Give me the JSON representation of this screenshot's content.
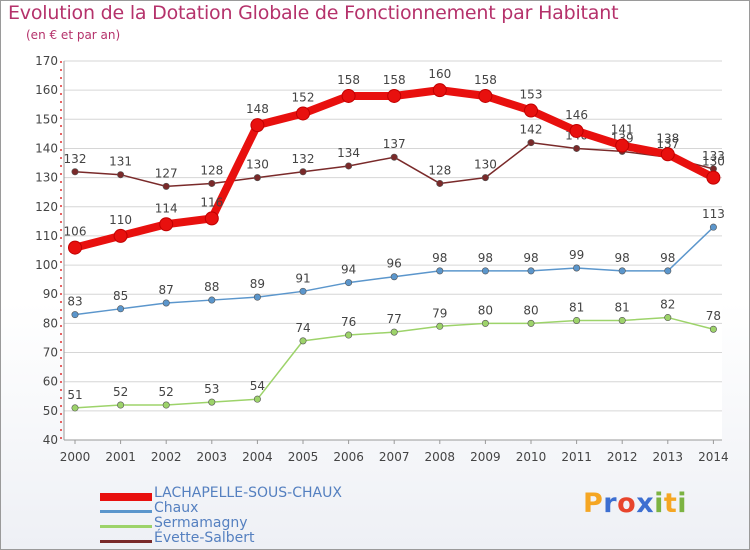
{
  "header": {
    "title": "Evolution de la Dotation Globale de Fonctionnement par Habitant",
    "subtitle": "(en € et par an)"
  },
  "logo": {
    "text": "Proxiti",
    "colors": [
      "#f5a623",
      "#3d6fd1",
      "#e8452c",
      "#3d6fd1",
      "#7cb342",
      "#f5a623",
      "#7cb342"
    ]
  },
  "chart_data": {
    "type": "line",
    "title": "Evolution de la Dotation Globale de Fonctionnement par Habitant",
    "subtitle": "(en € et par an)",
    "xlabel": "",
    "ylabel": "",
    "ylim": [
      40,
      170
    ],
    "yticks": [
      40,
      50,
      60,
      70,
      80,
      90,
      100,
      110,
      120,
      130,
      140,
      150,
      160,
      170
    ],
    "grid": true,
    "legend_position": "bottom-left",
    "x": [
      "2000",
      "2001",
      "2002",
      "2003",
      "2004",
      "2005",
      "2006",
      "2007",
      "2008",
      "2009",
      "2010",
      "2011",
      "2012",
      "2013",
      "2014"
    ],
    "series": [
      {
        "name": "LACHAPELLE-SOUS-CHAUX",
        "color": "#e8100e",
        "values": [
          106,
          110,
          114,
          116,
          148,
          152,
          158,
          158,
          160,
          158,
          153,
          146,
          141,
          138,
          130
        ],
        "labels": [
          "106",
          "110",
          "114",
          "116",
          "148",
          "152",
          "158",
          "158",
          "160",
          "158",
          "153",
          "146",
          "141",
          "138",
          "130"
        ]
      },
      {
        "name": "Chaux",
        "color": "#5b96cc",
        "values": [
          83,
          85,
          87,
          88,
          89,
          91,
          94,
          96,
          98,
          98,
          98,
          99,
          98,
          98,
          113
        ],
        "labels": [
          "83",
          "85",
          "87",
          "88",
          "89",
          "91",
          "94",
          "96",
          "98",
          "98",
          "98",
          "99",
          "98",
          "98",
          "113"
        ]
      },
      {
        "name": "Sermamagny",
        "color": "#9dd36a",
        "values": [
          51,
          52,
          52,
          53,
          54,
          74,
          76,
          77,
          79,
          80,
          80,
          81,
          81,
          82,
          78
        ],
        "labels": [
          "51",
          "52",
          "52",
          "53",
          "54",
          "74",
          "76",
          "77",
          "79",
          "80",
          "80",
          "81",
          "81",
          "82",
          "78"
        ]
      },
      {
        "name": "Évette-Salbert",
        "color": "#7a2a2a",
        "values": [
          132,
          131,
          127,
          128,
          130,
          132,
          134,
          137,
          128,
          130,
          142,
          140,
          139,
          137,
          133
        ],
        "labels": [
          "132",
          "131",
          "127",
          "128",
          "130",
          "132",
          "134",
          "137",
          "128",
          "130",
          "142",
          "140",
          "139",
          "137",
          "133"
        ]
      }
    ]
  }
}
